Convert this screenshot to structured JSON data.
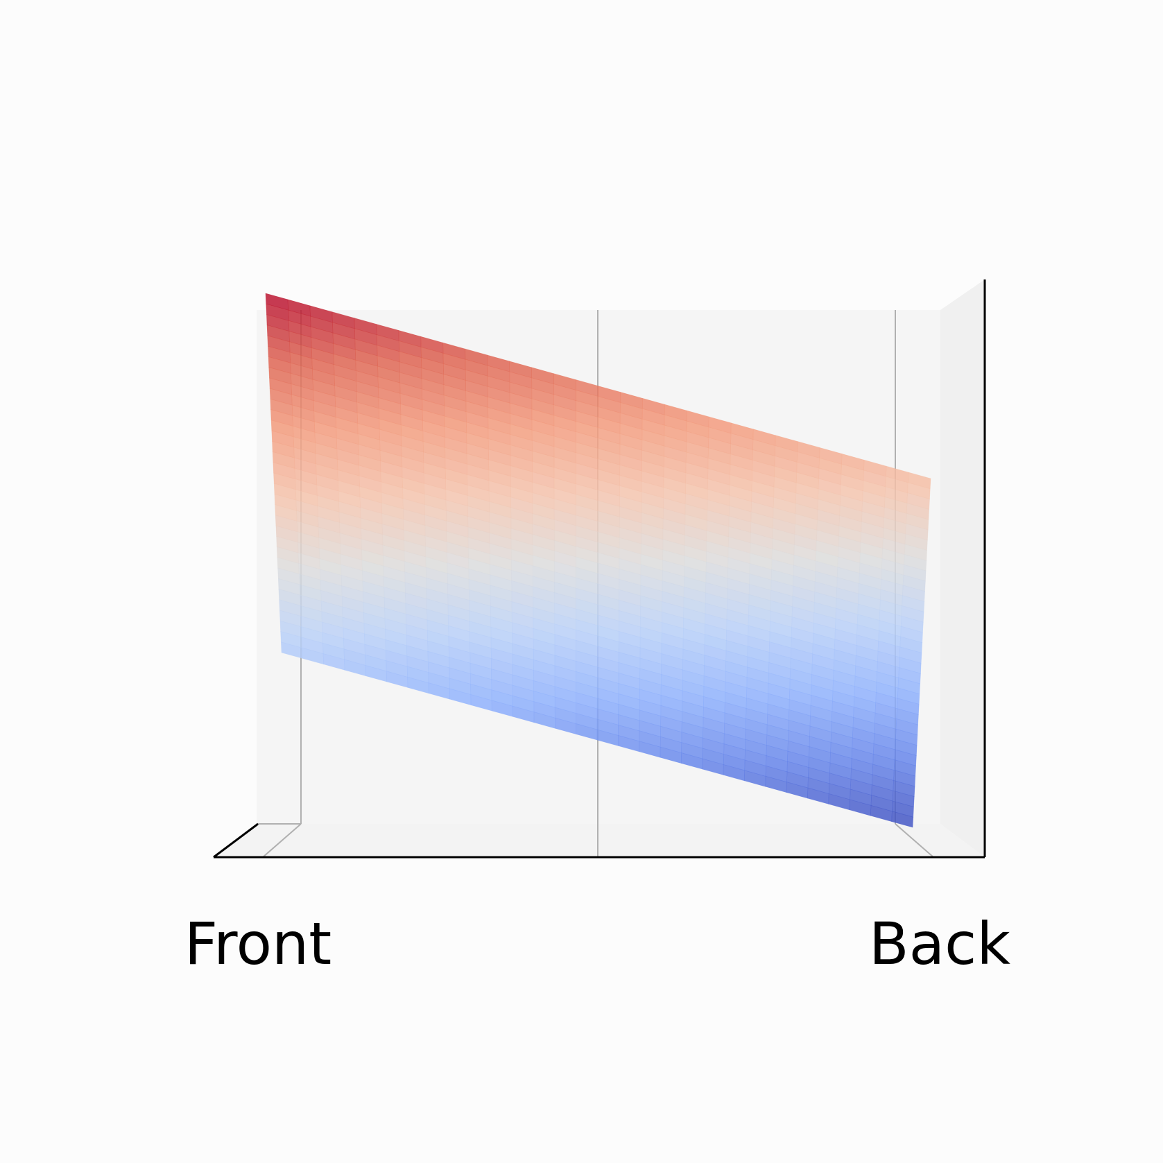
{
  "chart_data": {
    "type": "surface3d",
    "colormap": "coolwarm",
    "colors": {
      "pane_back": "#f5f5f5",
      "pane_side": "#f0f0f0",
      "pane_floor": "#f3f3f3",
      "gridline": "#b0b0b0",
      "axis_line": "#000000",
      "background": "#fcfcfc"
    },
    "grid": true,
    "x_axis": {
      "ticks": [
        0,
        0.5,
        1
      ],
      "tick_labels": [
        "Front",
        "",
        "Back"
      ]
    },
    "z_range": [
      0,
      1
    ],
    "surface": {
      "description_free": true,
      "x": [
        0,
        1
      ],
      "z_at_x0": [
        1.0,
        0.35
      ],
      "z_at_x1": [
        0.65,
        0.0
      ]
    }
  }
}
